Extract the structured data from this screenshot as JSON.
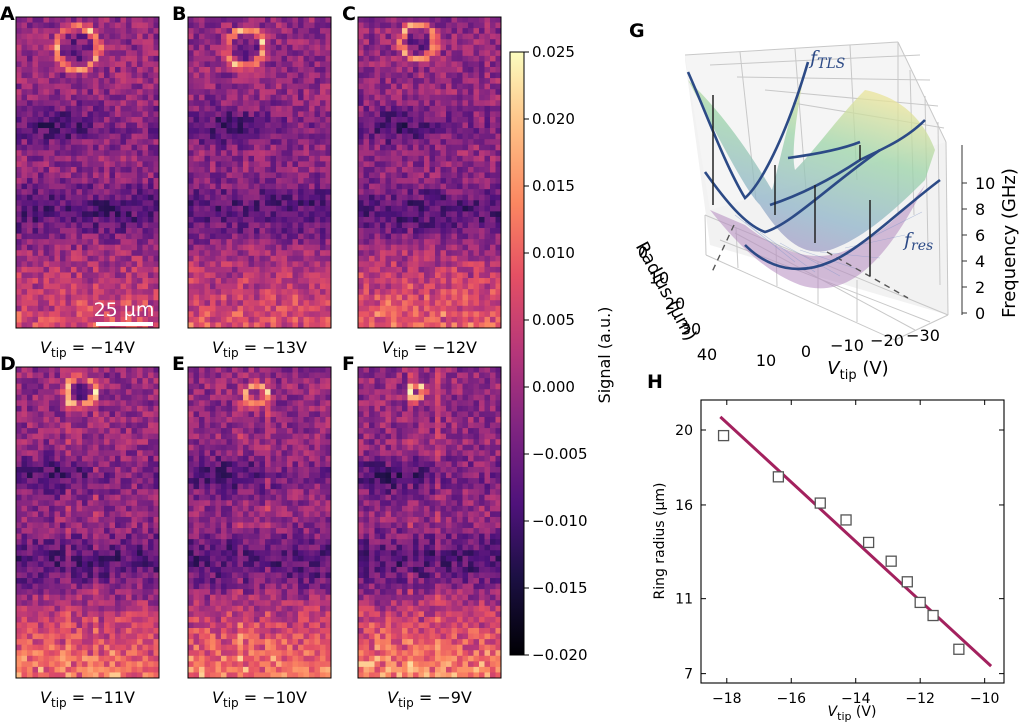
{
  "colors": {
    "accent": "#a3215e",
    "curve": "#2c4a86",
    "marker_edge": "#555555"
  },
  "scale_bar_label": "25 µm",
  "panels": [
    {
      "label": "A",
      "prefix": "V",
      "sub": "tip",
      "suffix": " = −14V",
      "seed": 11,
      "ring": [
        0.43,
        0.1,
        0.15
      ],
      "bright": 0.35
    },
    {
      "label": "B",
      "prefix": "V",
      "sub": "tip",
      "suffix": " = −13V",
      "seed": 23,
      "ring": [
        0.4,
        0.1,
        0.13
      ],
      "bright": 0.4
    },
    {
      "label": "C",
      "prefix": "V",
      "sub": "tip",
      "suffix": " = −12V",
      "seed": 37,
      "ring": [
        0.42,
        0.08,
        0.12
      ],
      "bright": 0.5
    },
    {
      "label": "D",
      "prefix": "V",
      "sub": "tip",
      "suffix": " = −11V",
      "seed": 41,
      "ring": [
        0.45,
        0.08,
        0.1
      ],
      "bright": 0.6
    },
    {
      "label": "E",
      "prefix": "V",
      "sub": "tip",
      "suffix": " = −10V",
      "seed": 53,
      "ring": [
        0.48,
        0.09,
        0.07
      ],
      "bright": 0.65
    },
    {
      "label": "F",
      "prefix": "V",
      "sub": "tip",
      "suffix": " = −9V",
      "seed": 67,
      "ring": [
        0.41,
        0.08,
        0.05
      ],
      "bright": 0.7
    }
  ],
  "colorbar": {
    "label": "Signal (a.u.)",
    "min": -0.02,
    "max": 0.025,
    "ticks": [
      "0.025",
      "0.020",
      "0.015",
      "0.010",
      "0.005",
      "0.000",
      "−0.005",
      "−0.010",
      "−0.015",
      "−0.020"
    ]
  },
  "panel_G": {
    "label": "G",
    "f_tls": "f",
    "f_tls_sub": "TLS",
    "f_res": "f",
    "f_res_sub": "res",
    "z_label": "Frequency (GHz)",
    "z_ticks": [
      "0",
      "2",
      "4",
      "6",
      "8",
      "10"
    ],
    "x_label_main": "V",
    "x_label_sub": "tip",
    "x_label_tail": " (V)",
    "x_ticks": [
      "10",
      "0",
      "−10",
      "−20",
      "−30"
    ],
    "y_label": "Radius (µm)",
    "y_ticks": [
      "0",
      "10",
      "20",
      "30",
      "40"
    ]
  },
  "chart_data": {
    "type": "scatter",
    "panel": "H",
    "xlabel_main": "V",
    "xlabel_sub": "tip",
    "xlabel_tail": " (V)",
    "ylabel": "Ring radius  (µm)",
    "x_ticks": [
      "−18",
      "−16",
      "−14",
      "−12",
      "−10"
    ],
    "y_ticks": [
      "7",
      "11",
      "16",
      "20"
    ],
    "xlim": [
      -18.8,
      -9.4
    ],
    "ylim": [
      6.5,
      21.6
    ],
    "points": [
      {
        "x": -18.1,
        "y": 19.7
      },
      {
        "x": -16.4,
        "y": 17.5
      },
      {
        "x": -15.1,
        "y": 16.1
      },
      {
        "x": -14.3,
        "y": 15.2
      },
      {
        "x": -13.6,
        "y": 14.0
      },
      {
        "x": -12.9,
        "y": 13.0
      },
      {
        "x": -12.4,
        "y": 11.9
      },
      {
        "x": -12.0,
        "y": 10.8
      },
      {
        "x": -11.6,
        "y": 10.1
      },
      {
        "x": -10.8,
        "y": 8.3
      }
    ],
    "fit": {
      "x": [
        -18.2,
        -9.8
      ],
      "y": [
        20.7,
        7.4
      ]
    }
  }
}
